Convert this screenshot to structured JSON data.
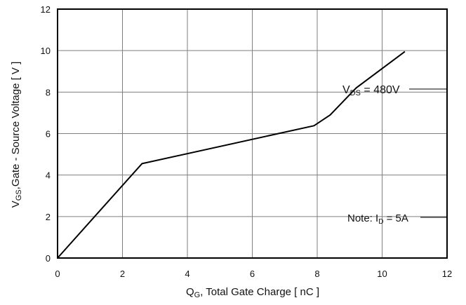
{
  "chart_data": {
    "type": "line",
    "xlabel": {
      "main": "Q",
      "sub": "G",
      "rest": ", Total Gate Charge [ nC ]"
    },
    "ylabel": {
      "main": "V",
      "sub": "GS",
      "rest": ",Gate - Source Voltage [ V ]"
    },
    "xlim": [
      0,
      12
    ],
    "ylim": [
      0,
      12
    ],
    "xticks": [
      "0",
      "2",
      "4",
      "6",
      "8",
      "10",
      "12"
    ],
    "yticks": [
      "0",
      "2",
      "4",
      "6",
      "8",
      "10",
      "12"
    ],
    "grid": true,
    "series": [
      {
        "x": [
          0,
          2.6,
          7.9,
          8.4,
          9.2,
          10.7
        ],
        "y": [
          0,
          4.55,
          6.38,
          6.9,
          8.2,
          9.95
        ]
      }
    ],
    "annotations": {
      "vds": {
        "main": "V",
        "sub": "DS",
        "rest": " = 480V"
      },
      "note": {
        "prefix": "Note: I",
        "sub": "D",
        "rest": " = 5A"
      }
    },
    "colors": {
      "line": "#000000",
      "grid": "#7f7f7f",
      "frame": "#000000"
    }
  }
}
